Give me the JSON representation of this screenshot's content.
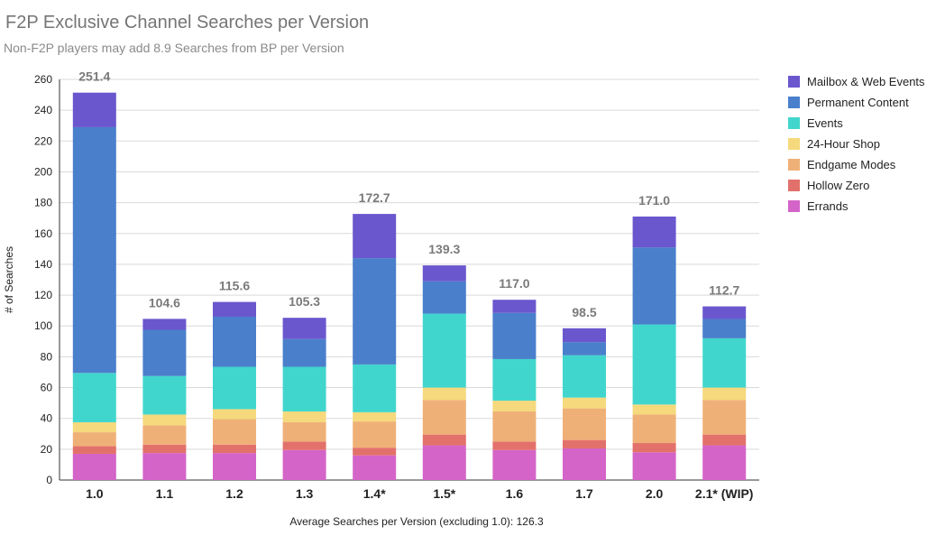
{
  "title": "F2P Exclusive Channel Searches per Version",
  "subtitle": "Non-F2P players may add 8.9 Searches from BP per Version",
  "chart_data": {
    "type": "bar",
    "stacked": true,
    "title": "F2P Exclusive Channel Searches per Version",
    "subtitle": "Non-F2P players may add 8.9 Searches from BP per Version",
    "xlabel": "Average Searches per Version (excluding 1.0): 126.3",
    "ylabel": "# of Searches",
    "ylim": [
      0,
      260
    ],
    "yticks": [
      0,
      20,
      40,
      60,
      80,
      100,
      120,
      140,
      160,
      180,
      200,
      220,
      240,
      260
    ],
    "grid": true,
    "legend_position": "right",
    "categories": [
      "1.0",
      "1.1",
      "1.2",
      "1.3",
      "1.4*",
      "1.5*",
      "1.6",
      "1.7",
      "2.0",
      "2.1* (WIP)"
    ],
    "totals": [
      "251.4",
      "104.6",
      "115.6",
      "105.3",
      "172.7",
      "139.3",
      "117.0",
      "98.5",
      "171.0",
      "112.7"
    ],
    "series": [
      {
        "name": "Errands",
        "color": "#d464c8",
        "values": [
          17,
          17.5,
          17.5,
          19.5,
          16,
          22.5,
          19.5,
          20.5,
          18,
          22.5
        ]
      },
      {
        "name": "Hollow Zero",
        "color": "#e3716b",
        "values": [
          5,
          5.5,
          5.5,
          5.5,
          5,
          7,
          5.5,
          5.5,
          6,
          7
        ]
      },
      {
        "name": "Endgame Modes",
        "color": "#efb077",
        "values": [
          9,
          12.5,
          16.5,
          12.5,
          17,
          22.5,
          19.5,
          20.5,
          18.5,
          22.5
        ]
      },
      {
        "name": "24-Hour Shop",
        "color": "#f5d97c",
        "values": [
          6.5,
          7,
          6.5,
          7,
          6,
          8,
          7,
          7,
          6.5,
          8
        ]
      },
      {
        "name": "Events",
        "color": "#41d6cd",
        "values": [
          32,
          25,
          27.5,
          29,
          31,
          48,
          27,
          27.5,
          52,
          32
        ]
      },
      {
        "name": "Permanent Content",
        "color": "#4a7fcb",
        "values": [
          159.5,
          30,
          32.5,
          18,
          69,
          21,
          30,
          8.5,
          50,
          12.5
        ]
      },
      {
        "name": "Mailbox & Web Events",
        "color": "#6a57ce",
        "values": [
          22.4,
          7.1,
          9.6,
          13.8,
          28.7,
          10.3,
          8.5,
          9,
          20,
          8.2
        ]
      }
    ]
  }
}
